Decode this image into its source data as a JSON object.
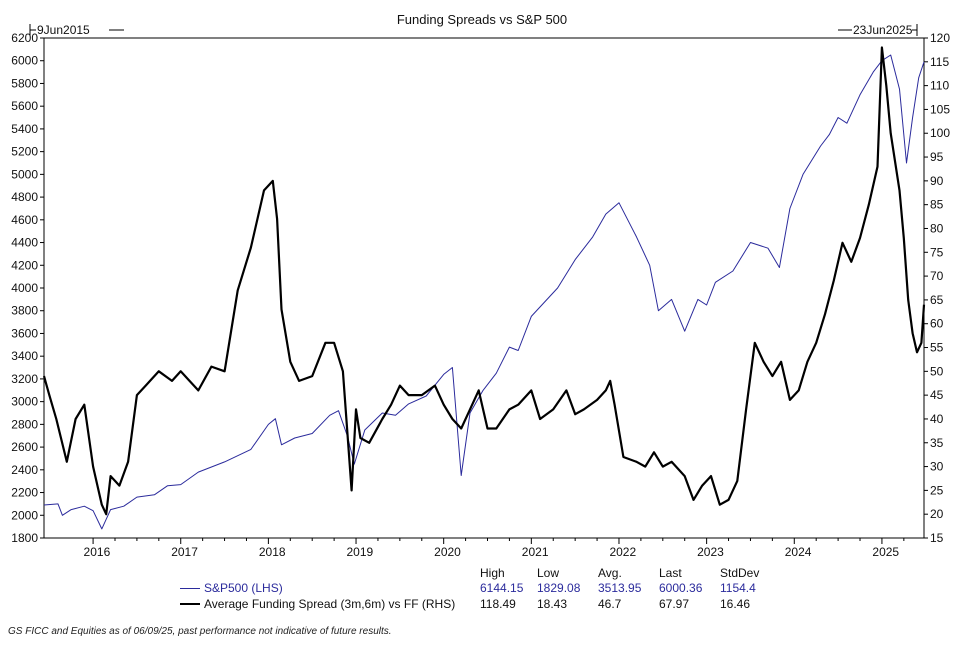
{
  "chart_data": {
    "type": "line",
    "title": "Funding Spreads vs S&P 500",
    "start_label": "9Jun2015",
    "end_label": "23Jun2025",
    "xlim": [
      2015.44,
      2025.48
    ],
    "x_ticks": [
      "2016",
      "2017",
      "2018",
      "2019",
      "2020",
      "2021",
      "2022",
      "2023",
      "2024",
      "2025"
    ],
    "left_axis": {
      "ylim": [
        1800,
        6200
      ],
      "ticks": [
        1800,
        2000,
        2200,
        2400,
        2600,
        2800,
        3000,
        3200,
        3400,
        3600,
        3800,
        4000,
        4200,
        4400,
        4600,
        4800,
        5000,
        5200,
        5400,
        5600,
        5800,
        6000,
        6200
      ]
    },
    "right_axis": {
      "ylim": [
        15,
        120
      ],
      "ticks": [
        15,
        20,
        25,
        30,
        35,
        40,
        45,
        50,
        55,
        60,
        65,
        70,
        75,
        80,
        85,
        90,
        95,
        100,
        105,
        110,
        115,
        120
      ]
    },
    "series": [
      {
        "name": "S&P500 (LHS)",
        "axis": "left",
        "color": "#2b2b9c",
        "x": [
          2015.44,
          2015.6,
          2015.65,
          2015.75,
          2015.9,
          2016.0,
          2016.1,
          2016.2,
          2016.35,
          2016.5,
          2016.7,
          2016.85,
          2017.0,
          2017.2,
          2017.5,
          2017.8,
          2018.0,
          2018.08,
          2018.15,
          2018.3,
          2018.5,
          2018.7,
          2018.8,
          2018.9,
          2018.98,
          2019.1,
          2019.3,
          2019.45,
          2019.6,
          2019.8,
          2020.0,
          2020.1,
          2020.2,
          2020.3,
          2020.45,
          2020.6,
          2020.75,
          2020.85,
          2021.0,
          2021.3,
          2021.5,
          2021.7,
          2021.85,
          2022.0,
          2022.2,
          2022.35,
          2022.45,
          2022.6,
          2022.75,
          2022.9,
          2023.0,
          2023.1,
          2023.3,
          2023.5,
          2023.7,
          2023.83,
          2023.95,
          2024.1,
          2024.3,
          2024.4,
          2024.5,
          2024.6,
          2024.75,
          2024.9,
          2025.0,
          2025.1,
          2025.2,
          2025.28,
          2025.35,
          2025.42,
          2025.48
        ],
        "y": [
          2090,
          2100,
          2000,
          2050,
          2080,
          2040,
          1880,
          2050,
          2080,
          2160,
          2180,
          2260,
          2270,
          2380,
          2470,
          2580,
          2800,
          2850,
          2620,
          2680,
          2720,
          2880,
          2920,
          2700,
          2450,
          2750,
          2900,
          2880,
          2980,
          3050,
          3240,
          3300,
          2350,
          2900,
          3100,
          3250,
          3480,
          3450,
          3750,
          4000,
          4250,
          4450,
          4650,
          4750,
          4450,
          4200,
          3800,
          3900,
          3620,
          3900,
          3850,
          4050,
          4150,
          4400,
          4350,
          4180,
          4700,
          5000,
          5250,
          5350,
          5500,
          5450,
          5700,
          5900,
          6000,
          6050,
          5750,
          5100,
          5500,
          5850,
          5990
        ]
      },
      {
        "name": "Average Funding Spread (3m,6m) vs FF (RHS)",
        "axis": "right",
        "color": "#000000",
        "x": [
          2015.44,
          2015.5,
          2015.58,
          2015.7,
          2015.8,
          2015.9,
          2016.0,
          2016.1,
          2016.15,
          2016.2,
          2016.3,
          2016.4,
          2016.5,
          2016.6,
          2016.75,
          2016.9,
          2017.0,
          2017.2,
          2017.35,
          2017.5,
          2017.65,
          2017.8,
          2017.95,
          2018.05,
          2018.1,
          2018.15,
          2018.25,
          2018.35,
          2018.5,
          2018.65,
          2018.75,
          2018.85,
          2018.95,
          2019.0,
          2019.05,
          2019.15,
          2019.3,
          2019.4,
          2019.5,
          2019.6,
          2019.75,
          2019.9,
          2020.0,
          2020.1,
          2020.2,
          2020.3,
          2020.4,
          2020.5,
          2020.6,
          2020.75,
          2020.85,
          2021.0,
          2021.1,
          2021.25,
          2021.4,
          2021.5,
          2021.6,
          2021.75,
          2021.85,
          2021.9,
          2021.95,
          2022.05,
          2022.2,
          2022.3,
          2022.4,
          2022.5,
          2022.6,
          2022.75,
          2022.85,
          2022.95,
          2023.05,
          2023.15,
          2023.25,
          2023.35,
          2023.45,
          2023.55,
          2023.65,
          2023.75,
          2023.85,
          2023.95,
          2024.05,
          2024.15,
          2024.25,
          2024.35,
          2024.45,
          2024.55,
          2024.65,
          2024.75,
          2024.85,
          2024.95,
          2025.0,
          2025.05,
          2025.1,
          2025.2,
          2025.25,
          2025.3,
          2025.35,
          2025.4,
          2025.45,
          2025.48
        ],
        "y": [
          49,
          45,
          40,
          31,
          40,
          43,
          30,
          22,
          20,
          28,
          26,
          31,
          45,
          47,
          50,
          48,
          50,
          46,
          51,
          50,
          67,
          76,
          88,
          90,
          82,
          63,
          52,
          48,
          49,
          56,
          56,
          50,
          25,
          42,
          36,
          35,
          40,
          43,
          47,
          45,
          45,
          47,
          43,
          40,
          38,
          42,
          46,
          38,
          38,
          42,
          43,
          46,
          40,
          42,
          46,
          41,
          42,
          44,
          46,
          48,
          43,
          32,
          31,
          30,
          33,
          30,
          31,
          28,
          23,
          26,
          28,
          22,
          23,
          27,
          42,
          56,
          52,
          49,
          52,
          44,
          46,
          52,
          56,
          62,
          69,
          77,
          73,
          78,
          85,
          93,
          118,
          110,
          100,
          88,
          78,
          65,
          58,
          54,
          56,
          64
        ]
      }
    ],
    "legend_table": {
      "headers": [
        "High",
        "Low",
        "Avg.",
        "Last",
        "StdDev"
      ],
      "rows": [
        {
          "label": "S&P500 (LHS)",
          "values": [
            "6144.15",
            "1829.08",
            "3513.95",
            "6000.36",
            "1154.4"
          ]
        },
        {
          "label": "Average Funding Spread (3m,6m) vs FF (RHS)",
          "values": [
            "118.49",
            "18.43",
            "46.7",
            "67.97",
            "16.46"
          ]
        }
      ]
    }
  },
  "footnote": "GS FICC and Equities as of 06/09/25, past performance not indicative of future results."
}
